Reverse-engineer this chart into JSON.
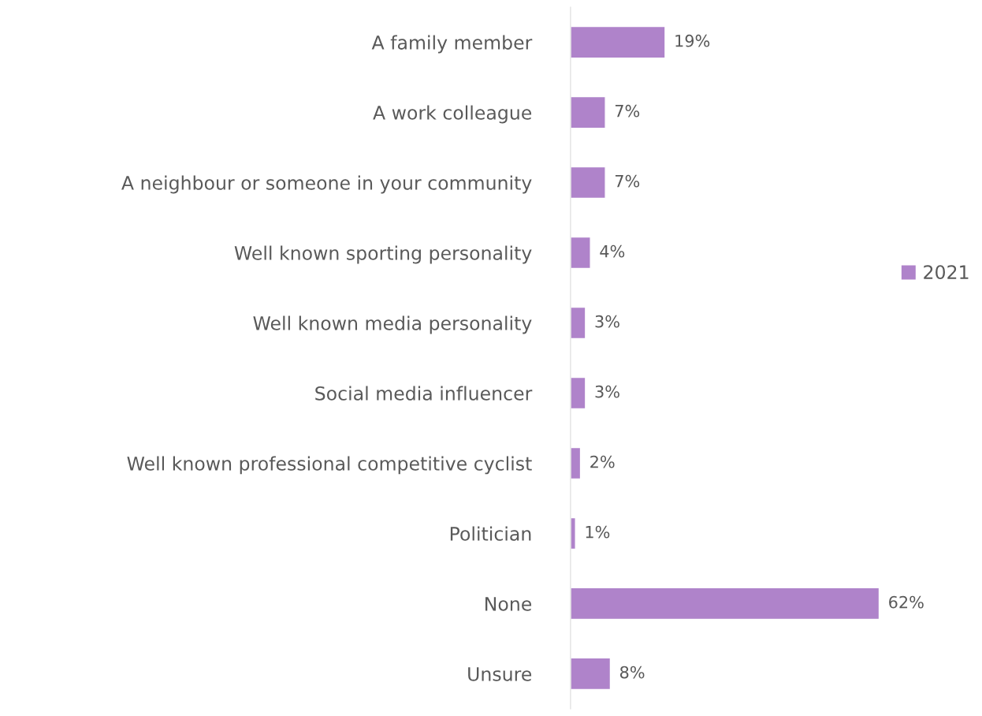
{
  "chart_data": {
    "type": "bar",
    "orientation": "horizontal",
    "categories": [
      "A family member",
      "A work colleague",
      "A neighbour or someone in your community",
      "Well known sporting personality",
      "Well known media personality",
      "Social media influencer",
      "Well known professional competitive cyclist",
      "Politician",
      "None",
      "Unsure"
    ],
    "series": [
      {
        "name": "2021",
        "color": "#af83ca",
        "values": [
          19,
          7,
          7,
          4,
          3,
          3,
          2,
          1,
          62,
          8
        ],
        "value_labels": [
          "19%",
          "7%",
          "7%",
          "4%",
          "3%",
          "3%",
          "2%",
          "1%",
          "62%",
          "8%"
        ]
      }
    ],
    "legend": "right",
    "grid": false
  }
}
